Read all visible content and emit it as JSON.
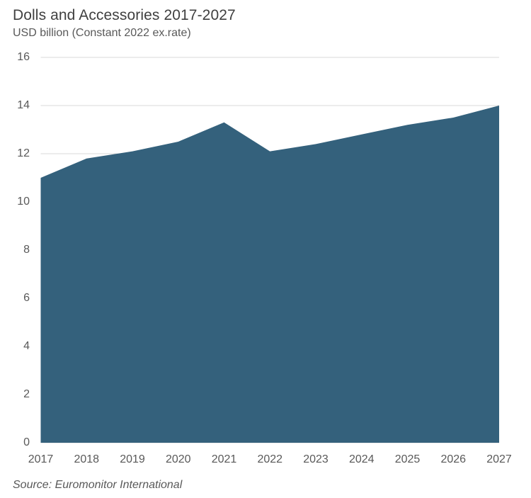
{
  "header": {
    "title": "Dolls and Accessories 2017-2027",
    "subtitle": "USD billion (Constant 2022 ex.rate)"
  },
  "footer": {
    "source": "Source: Euromonitor International"
  },
  "chart_data": {
    "type": "area",
    "title": "Dolls and Accessories 2017-2027",
    "subtitle": "USD billion (Constant 2022 ex.rate)",
    "categories": [
      "2017",
      "2018",
      "2019",
      "2020",
      "2021",
      "2022",
      "2023",
      "2024",
      "2025",
      "2026",
      "2027"
    ],
    "series": [
      {
        "name": "Dolls and Accessories",
        "values": [
          11.0,
          11.8,
          12.1,
          12.5,
          13.3,
          12.1,
          12.4,
          12.8,
          13.2,
          13.5,
          14.0
        ]
      }
    ],
    "xlabel": "",
    "ylabel": "USD billion (Constant 2022 ex.rate)",
    "ylim": [
      0,
      16
    ],
    "ytick_step": 2,
    "grid": true,
    "legend": false,
    "colors": {
      "area_fill": "#34617C",
      "gridline": "#D9D9D9",
      "axis_text": "#595959",
      "title_text": "#404040"
    },
    "source": "Source: Euromonitor International"
  }
}
